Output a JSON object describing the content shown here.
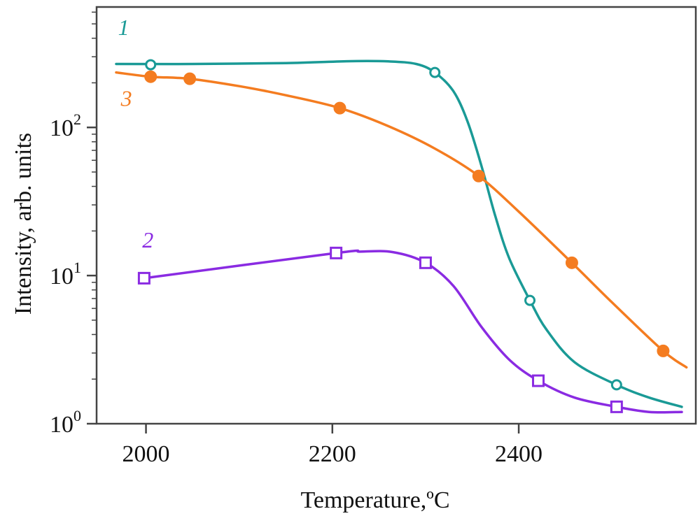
{
  "chart_data": {
    "type": "line",
    "title": "",
    "xlabel": "Temperature,ºC",
    "ylabel": "Intensity, arb. units",
    "y_scale": "log",
    "xlim": [
      1947,
      2590
    ],
    "ylim": [
      1,
      650
    ],
    "grid": false,
    "x_ticks": [
      {
        "value": 2000,
        "label": "2000"
      },
      {
        "value": 2200,
        "label": "2200"
      },
      {
        "value": 2400,
        "label": "2400"
      }
    ],
    "y_ticks": [
      {
        "value": 1,
        "base": "10",
        "exp": "0"
      },
      {
        "value": 10,
        "base": "10",
        "exp": "1"
      },
      {
        "value": 100,
        "base": "10",
        "exp": "2"
      }
    ],
    "series": [
      {
        "label": "1",
        "color": "#1a9a96",
        "marker": "open-circle",
        "points": [
          [
            2005,
            265
          ],
          [
            2310,
            235
          ],
          [
            2412,
            6.8
          ],
          [
            2505,
            1.83
          ]
        ],
        "curve": [
          [
            1968,
            268
          ],
          [
            2050,
            268
          ],
          [
            2150,
            272
          ],
          [
            2220,
            280
          ],
          [
            2260,
            279
          ],
          [
            2290,
            268
          ],
          [
            2310,
            235
          ],
          [
            2330,
            175
          ],
          [
            2345,
            110
          ],
          [
            2360,
            55
          ],
          [
            2375,
            25
          ],
          [
            2390,
            13
          ],
          [
            2412,
            6.8
          ],
          [
            2430,
            4.3
          ],
          [
            2460,
            2.6
          ],
          [
            2505,
            1.83
          ],
          [
            2540,
            1.5
          ],
          [
            2575,
            1.3
          ]
        ]
      },
      {
        "label": "3",
        "color": "#f47c20",
        "marker": "filled-circle",
        "points": [
          [
            2005,
            220
          ],
          [
            2047,
            213
          ],
          [
            2208,
            135
          ],
          [
            2357,
            47
          ],
          [
            2457,
            12.2
          ],
          [
            2555,
            3.1
          ]
        ],
        "curve": [
          [
            1968,
            235
          ],
          [
            2005,
            220
          ],
          [
            2047,
            213
          ],
          [
            2100,
            190
          ],
          [
            2150,
            165
          ],
          [
            2208,
            135
          ],
          [
            2260,
            102
          ],
          [
            2310,
            72
          ],
          [
            2357,
            47
          ],
          [
            2400,
            27
          ],
          [
            2457,
            12.2
          ],
          [
            2500,
            6.6
          ],
          [
            2555,
            3.1
          ],
          [
            2580,
            2.4
          ]
        ]
      },
      {
        "label": "2",
        "color": "#8a2be2",
        "marker": "open-square",
        "points": [
          [
            1998,
            9.6
          ],
          [
            2204,
            14.2
          ],
          [
            2300,
            12.2
          ],
          [
            2421,
            1.95
          ],
          [
            2505,
            1.3
          ]
        ],
        "curve": [
          [
            1998,
            9.6
          ],
          [
            2204,
            14.2
          ],
          [
            2230,
            14.5
          ],
          [
            2265,
            14.4
          ],
          [
            2300,
            12.2
          ],
          [
            2330,
            8.5
          ],
          [
            2360,
            4.5
          ],
          [
            2390,
            2.7
          ],
          [
            2421,
            1.95
          ],
          [
            2460,
            1.5
          ],
          [
            2505,
            1.3
          ],
          [
            2540,
            1.2
          ],
          [
            2575,
            1.2
          ]
        ]
      }
    ],
    "annotations": [
      {
        "text": "1",
        "x": 1970,
        "y": 420
      },
      {
        "text": "3",
        "x": 1973,
        "y": 140
      },
      {
        "text": "2",
        "x": 1996,
        "y": 15.5
      }
    ]
  }
}
